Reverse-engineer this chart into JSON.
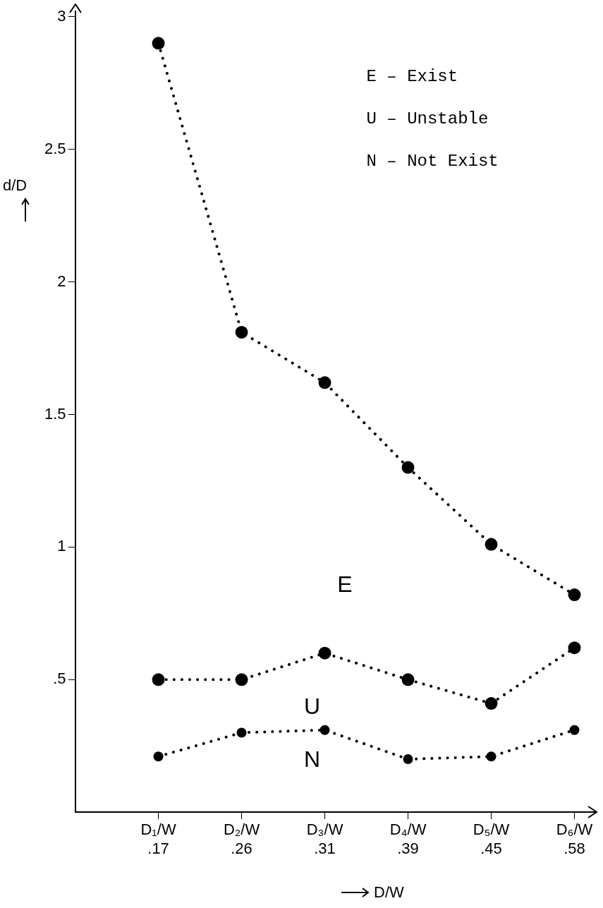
{
  "chart_data": {
    "type": "line",
    "xlabel": "D/W",
    "ylabel": "d/D",
    "categories": [
      "D₁/W\n.17",
      "D₂/W\n.26",
      "D₃/W\n.31",
      "D₄/W\n.39",
      "D₅/W\n.45",
      "D₆/W\n.58"
    ],
    "series": [
      {
        "color": "#000000",
        "values": [
          2.9,
          1.81,
          1.62,
          1.3,
          1.01,
          0.82
        ]
      },
      {
        "color": "#000000",
        "values": [
          0.5,
          0.5,
          0.6,
          0.5,
          0.41,
          0.62
        ]
      },
      {
        "color": "#000000",
        "values": [
          0.21,
          0.3,
          0.31,
          0.2,
          0.21,
          0.31
        ]
      }
    ],
    "ylim": [
      0,
      3.02
    ],
    "yticks": [
      {
        "value": 0.5,
        "label": ".5"
      },
      1,
      1.5,
      2,
      2.5,
      3
    ],
    "annotations": [
      "E – Exist",
      "U – Unstable",
      "N – Not Exist",
      "E",
      "U",
      "N"
    ],
    "grid": false,
    "legend": false,
    "marker": "circle",
    "line_style": "dotted"
  }
}
